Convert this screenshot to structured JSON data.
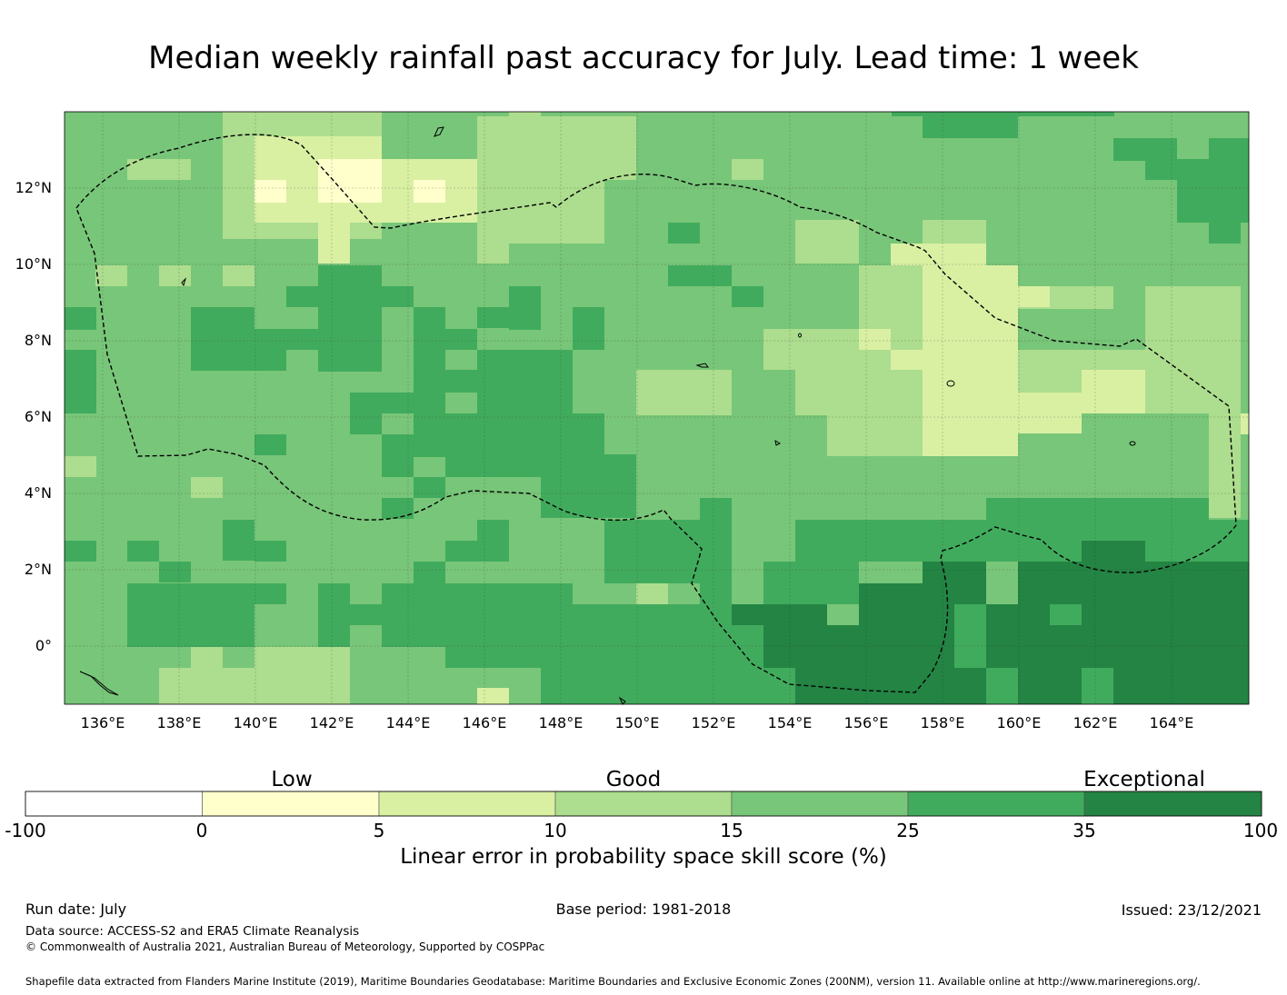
{
  "title": "Median weekly rainfall past accuracy for July. Lead time: 1 week",
  "map": {
    "lon_range": [
      135,
      166
    ],
    "lat_range": [
      -1.5,
      14
    ],
    "lon_ticks": [
      "136°E",
      "138°E",
      "140°E",
      "142°E",
      "144°E",
      "146°E",
      "148°E",
      "150°E",
      "152°E",
      "154°E",
      "156°E",
      "158°E",
      "160°E",
      "162°E",
      "164°E"
    ],
    "lat_ticks": [
      "0°",
      "2°N",
      "4°N",
      "6°N",
      "8°N",
      "10°N",
      "12°N"
    ],
    "boundary": "Exclusive Economic Zone (dashed)",
    "cell_size_deg": 0.833
  },
  "colorbar": {
    "class_labels": [
      "Low",
      "Good",
      "Exceptional"
    ],
    "tick_labels": [
      "-100",
      "0",
      "5",
      "10",
      "15",
      "25",
      "35",
      "100"
    ],
    "colors": [
      "#ffffff",
      "#ffffcc",
      "#d9f0a3",
      "#addd8e",
      "#78c679",
      "#41ab5d",
      "#238443"
    ],
    "axis_label": "Linear error in probability space skill score (%)"
  },
  "footer": {
    "run_date": "Run date: July",
    "base_period": "Base period: 1981-2018",
    "issued": "Issued: 23/12/2021",
    "data_source": "Data source: ACCESS-S2 and ERA5 Climate Reanalysis",
    "copyright": "© Commonwealth of Australia 2021, Australian Bureau of Meteorology, Supported by COSPPac",
    "shapefile": "Shapefile data extracted from Flanders Marine Institute (2019), Maritime Boundaries Geodatabase: Maritime Boundaries and Exclusive Economic Zones (200NM), version 11. Available online at http://www.marineregions.org/."
  }
}
